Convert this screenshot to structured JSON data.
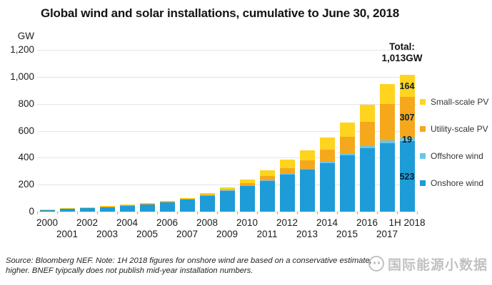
{
  "title": "Global wind and solar installations, cumulative to June 30, 2018",
  "y_axis": {
    "unit": "GW",
    "tick_labels": [
      "1,200",
      "1,000",
      "800",
      "600",
      "400",
      "200",
      "0"
    ]
  },
  "total_annotation": {
    "line1": "Total:",
    "line2": "1,013GW"
  },
  "legend": {
    "items": [
      {
        "label": "Small-scale PV",
        "color": "#ffd41f"
      },
      {
        "label": "Utility-scale PV",
        "color": "#f6a81c"
      },
      {
        "label": "Offshore wind",
        "color": "#6ac6e8"
      },
      {
        "label": "Onshore wind",
        "color": "#1e9cd7"
      }
    ]
  },
  "footnote": {
    "line1": "Source: Bloomberg NEF. Note: 1H 2018 figures for onshore wind are based on a conservative estimate,",
    "line2": "higher. BNEF tyipcally does not publish mid-year installation numbers."
  },
  "watermark": {
    "text": "国际能源小数据"
  },
  "chart_data": {
    "type": "bar",
    "stacked": true,
    "title": "Global wind and solar installations, cumulative to June 30, 2018",
    "ylabel": "GW",
    "ylim": [
      0,
      1200
    ],
    "grid": true,
    "legend_position": "right",
    "categories": [
      "2000",
      "2001",
      "2002",
      "2003",
      "2004",
      "2005",
      "2006",
      "2007",
      "2008",
      "2009",
      "2010",
      "2011",
      "2012",
      "2013",
      "2014",
      "2015",
      "2016",
      "2017",
      "1H 2018"
    ],
    "series": [
      {
        "name": "Onshore wind",
        "color": "#1e9cd7",
        "values": [
          16.5,
          23,
          30,
          38,
          46,
          58,
          73,
          92,
          119,
          156,
          194,
          231,
          273,
          311,
          360,
          420,
          472,
          510,
          523
        ]
      },
      {
        "name": "Offshore wind",
        "color": "#6ac6e8",
        "values": [
          0,
          0.1,
          0.2,
          0.5,
          0.6,
          0.7,
          0.9,
          1.1,
          1.5,
          2.1,
          3.1,
          4.1,
          5.4,
          7,
          8.8,
          12,
          14,
          18.8,
          19
        ]
      },
      {
        "name": "Utility-scale PV",
        "color": "#f6a81c",
        "values": [
          0.3,
          0.4,
          0.5,
          0.6,
          1,
          1.3,
          1.6,
          2.4,
          4.5,
          8,
          14,
          28,
          43,
          63,
          89,
          121,
          180,
          270,
          307
        ]
      },
      {
        "name": "Small-scale PV",
        "color": "#ffd41f",
        "values": [
          1.2,
          1.5,
          2.3,
          2.9,
          3.4,
          4,
          4.5,
          7.5,
          11,
          16,
          27,
          45,
          62,
          75,
          90,
          108,
          126,
          146,
          164
        ]
      }
    ],
    "last_bar_segment_labels": {
      "Onshore wind": "523",
      "Offshore wind": "19",
      "Utility-scale PV": "307",
      "Small-scale PV": "164"
    },
    "total_label": "Total: 1,013GW"
  }
}
